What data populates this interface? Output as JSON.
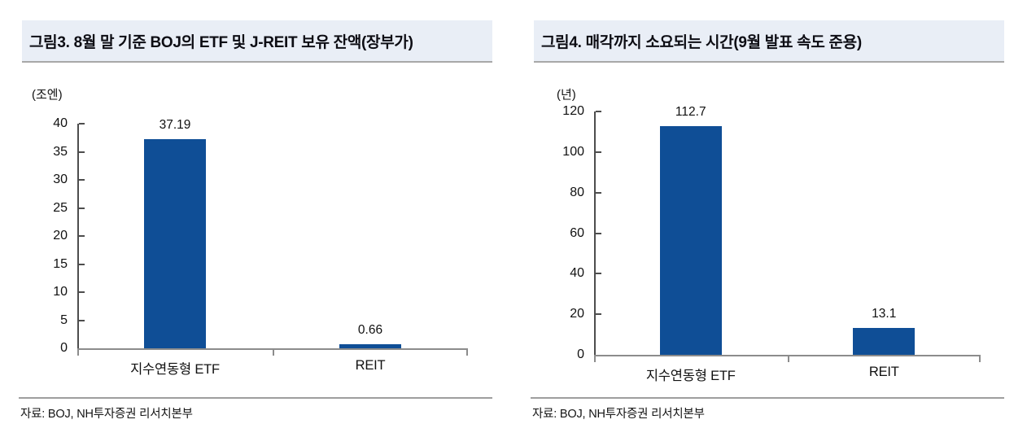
{
  "figures": [
    {
      "title": "그림3. 8월 말 기준 BOJ의 ETF 및 J-REIT 보유 잔액(장부가)",
      "source": "자료: BOJ, NH투자증권 리서치본부"
    },
    {
      "title": "그림4. 매각까지 소요되는 시간(9월 발표 속도 준용)",
      "source": "자료: BOJ, NH투자증권 리서치본부"
    }
  ],
  "chart_data": [
    {
      "type": "bar",
      "title": "그림3. 8월 말 기준 BOJ의 ETF 및 J-REIT 보유 잔액(장부가)",
      "unit_label": "(조엔)",
      "categories": [
        "지수연동형 ETF",
        "REIT"
      ],
      "values": [
        37.19,
        0.66
      ],
      "data_labels": [
        "37.19",
        "0.66"
      ],
      "ylim": [
        0,
        40
      ],
      "yticks": [
        0,
        5,
        10,
        15,
        20,
        25,
        30,
        35,
        40
      ],
      "grid": false,
      "legend": "none",
      "bar_color": "#0f4e96",
      "source": "자료: BOJ, NH투자증권 리서치본부"
    },
    {
      "type": "bar",
      "title": "그림4. 매각까지 소요되는 시간(9월 발표 속도 준용)",
      "unit_label": "(년)",
      "categories": [
        "지수연동형 ETF",
        "REIT"
      ],
      "values": [
        112.7,
        13.1
      ],
      "data_labels": [
        "112.7",
        "13.1"
      ],
      "ylim": [
        0,
        120
      ],
      "yticks": [
        0,
        20,
        40,
        60,
        80,
        100,
        120
      ],
      "grid": false,
      "legend": "none",
      "bar_color": "#0f4e96",
      "source": "자료: BOJ, NH투자증권 리서치본부"
    }
  ],
  "colors": {
    "bar": "#0f4e96",
    "title_band_bg": "#e9eef6",
    "title_band_border": "#a8a8a8",
    "axis": "#4d4d4d",
    "x_axis": "#8c8c8c"
  }
}
